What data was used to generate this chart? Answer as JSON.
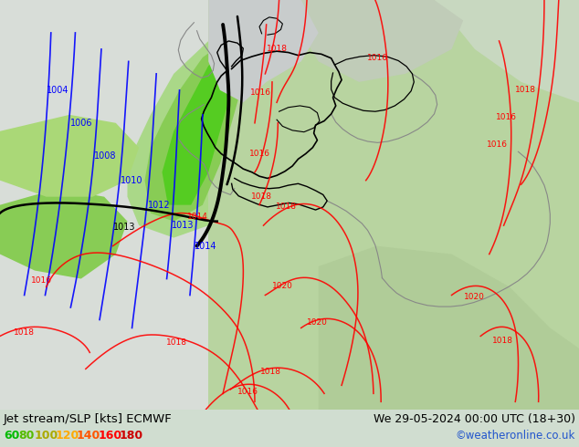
{
  "title_left": "Jet stream/SLP [kts] ECMWF",
  "title_right": "We 29-05-2024 00:00 UTC (18+30)",
  "credit": "©weatheronline.co.uk",
  "legend_values": [
    "60",
    "80",
    "100",
    "120",
    "140",
    "160",
    "180"
  ],
  "legend_colors": [
    "#00bb00",
    "#55bb00",
    "#aaaa00",
    "#ffaa00",
    "#ff5500",
    "#ff0000",
    "#cc0000"
  ],
  "bottom_bar_color": "#c8e8c8",
  "fig_width": 6.34,
  "fig_height": 4.9,
  "dpi": 100,
  "ocean_color": "#d8e8d8",
  "land_green_bright": "#88cc66",
  "land_green_mid": "#aacc88",
  "land_green_pale": "#c8dcc0",
  "land_grey": "#c8c8c8",
  "sea_grey": "#d8d8d8",
  "jet_green_bright": "#66dd44",
  "jet_green_mid": "#99dd77",
  "map_bg": "#d0ddd0"
}
